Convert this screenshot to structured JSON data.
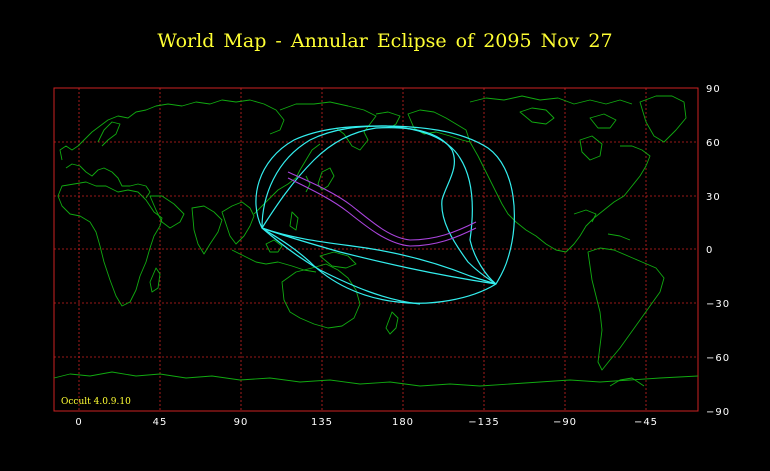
{
  "title": "World Map  -  Annular  Eclipse  of  2095 Nov 27",
  "credit": "Occult 4.0.9.10",
  "colors": {
    "background": "#000000",
    "grid": "#cc2222",
    "coastline": "#11aa11",
    "outline": "#33eeee",
    "central_path": "#aa44dd",
    "text": "#ffff33",
    "ticks": "#ffffff"
  },
  "map": {
    "projection": "equirectangular",
    "lon_center": 180,
    "lat_range": [
      -90,
      90
    ],
    "longitude_labels": [
      "0",
      "45",
      "90",
      "135",
      "180",
      "−135",
      "−90",
      "−45"
    ],
    "latitude_labels": [
      "90",
      "60",
      "30",
      "0",
      "−30",
      "−60",
      "−90"
    ]
  }
}
